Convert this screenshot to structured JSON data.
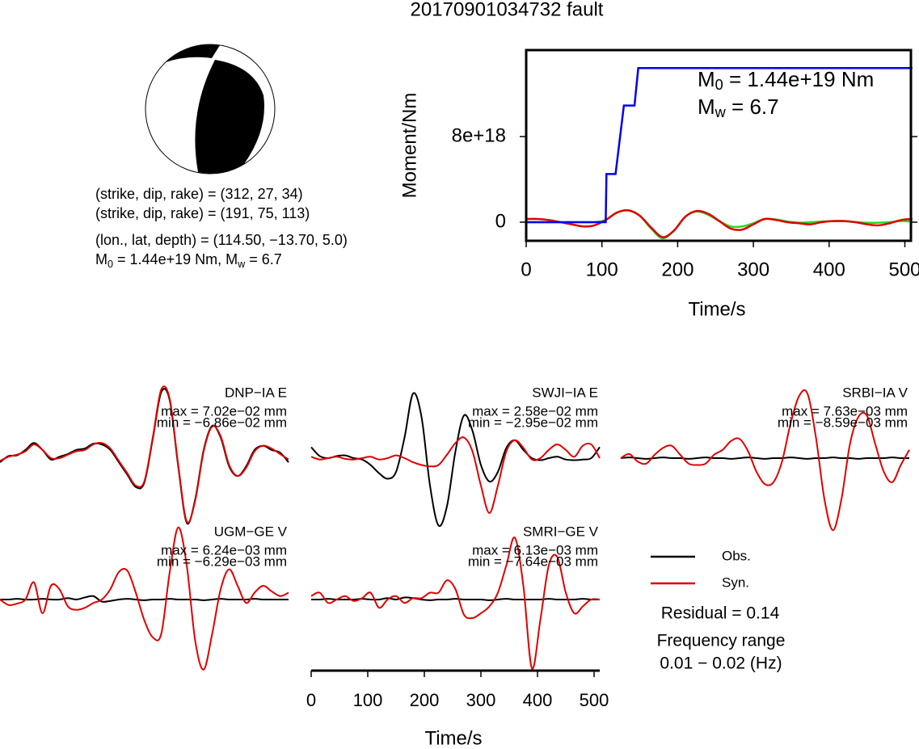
{
  "title": "20170901034732 fault",
  "mechanism": {
    "lines": [
      "(strike, dip, rake) = (312, 27, 34)",
      "(strike, dip, rake) = (191, 75, 113)",
      "(lon., lat, depth) = (114.50, −13.70, 5.0)"
    ],
    "moment_line": [
      "M",
      "0",
      " = 1.44e+19 Nm, M",
      "w",
      " = 6.7"
    ]
  },
  "chart_data": [
    {
      "type": "line",
      "ylabel": "Moment/Nm",
      "xlabel": "Time/s",
      "annotation": [
        "M",
        "0",
        " = 1.44e+19 Nm"
      ],
      "annotation2": [
        "M",
        "w",
        " = 6.7"
      ],
      "xlim": [
        0,
        508
      ],
      "ylim": [
        -1.74e+18,
        1.608e+19
      ],
      "xticks": [
        0,
        100,
        200,
        300,
        400,
        500
      ],
      "yticks": [
        0,
        {
          "value": 8e+18,
          "label": "8e+18"
        }
      ],
      "series": [
        {
          "color": "#22dd22",
          "x": [
            0,
            15,
            30,
            45,
            60,
            75,
            90,
            105,
            120,
            135,
            150,
            165,
            180,
            195,
            210,
            225,
            240,
            255,
            270,
            285,
            300,
            315,
            330,
            345,
            360,
            375,
            390,
            405,
            420,
            435,
            450,
            465,
            480,
            495,
            510
          ],
          "values": [
            0,
            0,
            0,
            0,
            0,
            0,
            0,
            2e+17,
            9e+17,
            1.1e+18,
            6e+17,
            -6e+17,
            -1.5e+18,
            -8e+17,
            5e+17,
            1e+18,
            7e+17,
            1e+17,
            -4e+17,
            -4e+17,
            -1e+17,
            3e+17,
            2.5e+17,
            5e+16,
            -5e+16,
            0,
            5e+16,
            1e+17,
            1e+17,
            0,
            -5e+16,
            -5e+16,
            0,
            1e+17,
            5e+16
          ]
        },
        {
          "color": "#e00000",
          "x": [
            0,
            15,
            30,
            45,
            60,
            75,
            90,
            105,
            120,
            135,
            150,
            165,
            180,
            195,
            210,
            225,
            240,
            255,
            270,
            285,
            300,
            315,
            330,
            345,
            360,
            375,
            390,
            405,
            420,
            435,
            450,
            465,
            480,
            495,
            510
          ],
          "values": [
            3e+17,
            3e+17,
            2e+17,
            0,
            -2e+17,
            -4e+17,
            -3e+17,
            2e+17,
            9e+17,
            1.1e+18,
            6e+17,
            -5e+17,
            -1.4e+18,
            -8e+17,
            5e+17,
            1.05e+18,
            8e+17,
            1e+17,
            -6e+17,
            -7e+17,
            -2e+17,
            3e+17,
            2e+17,
            0,
            -1e+17,
            -2e+17,
            0,
            1e+17,
            1e+17,
            0,
            -2e+17,
            -3e+17,
            -1e+17,
            2e+17,
            3e+17
          ]
        },
        {
          "color": "#0000ee",
          "x": [
            0,
            105,
            106,
            118,
            129,
            143,
            148,
            510
          ],
          "values": [
            0,
            0,
            4.5e+18,
            4.5e+18,
            1.09e+19,
            1.09e+19,
            1.44e+19,
            1.44e+19
          ]
        }
      ]
    },
    {
      "type": "waveform",
      "xlabel": "Time/s",
      "xlim": [
        0,
        510
      ],
      "xticks": [
        0,
        100,
        200,
        300,
        400,
        500
      ],
      "legend": [
        {
          "name": "Obs.",
          "color": "#000000"
        },
        {
          "name": "Syn.",
          "color": "#e00000"
        }
      ],
      "residual": "Residual = 0.14",
      "freq_title": "Frequency range",
      "freq": "0.01 − 0.02 (Hz)",
      "x": [
        0,
        15,
        30,
        45,
        60,
        75,
        90,
        105,
        120,
        135,
        150,
        165,
        180,
        195,
        210,
        225,
        240,
        255,
        270,
        285,
        300,
        315,
        330,
        345,
        360,
        375,
        390,
        405,
        420,
        435,
        450,
        465,
        480,
        495,
        510
      ],
      "panels": [
        {
          "station": "DNP−IA E",
          "max": "max = 7.02e−02 mm",
          "min": "min = −6.86e−02 mm",
          "obs": [
            -0.06,
            0.03,
            0.04,
            0.12,
            0.22,
            0.12,
            -0.02,
            0.02,
            0.06,
            0.12,
            0.14,
            0.21,
            0.2,
            0.12,
            -0.06,
            -0.24,
            -0.42,
            -0.36,
            0.28,
            0.96,
            0.84,
            -0.12,
            -0.94,
            -0.6,
            0.12,
            0.47,
            0.3,
            -0.12,
            -0.26,
            -0.12,
            0.12,
            0.18,
            0.12,
            0.08,
            -0.06
          ],
          "syn": [
            -0.04,
            0.02,
            0.05,
            0.1,
            0.2,
            0.12,
            0.0,
            0.0,
            0.05,
            0.1,
            0.12,
            0.2,
            0.22,
            0.14,
            -0.04,
            -0.22,
            -0.4,
            -0.34,
            0.3,
            1.0,
            0.86,
            -0.1,
            -0.92,
            -0.62,
            0.1,
            0.46,
            0.32,
            -0.1,
            -0.26,
            -0.14,
            0.1,
            0.18,
            0.14,
            0.06,
            -0.02
          ]
        },
        {
          "station": "SWJI−IA E",
          "max": "max = 2.58e−02 mm",
          "min": "min = −2.95e−02 mm",
          "obs": [
            0.16,
            0.03,
            0.0,
            0.03,
            0.04,
            0.0,
            -0.02,
            -0.1,
            -0.22,
            -0.3,
            -0.2,
            0.3,
            0.94,
            0.6,
            -0.4,
            -0.98,
            -0.7,
            0.1,
            0.62,
            0.4,
            -0.1,
            -0.34,
            -0.2,
            0.15,
            0.26,
            0.12,
            0.0,
            -0.03,
            0.0,
            0.02,
            -0.02,
            -0.03,
            -0.02,
            0.0,
            0.16
          ],
          "syn": [
            0.02,
            -0.02,
            0.0,
            0.02,
            -0.01,
            -0.02,
            0.0,
            0.02,
            -0.02,
            0.0,
            0.04,
            0.0,
            -0.06,
            -0.1,
            -0.12,
            -0.1,
            0.05,
            0.22,
            0.3,
            0.1,
            -0.4,
            -0.8,
            -0.4,
            0.1,
            0.26,
            0.15,
            -0.02,
            0.0,
            0.12,
            0.2,
            0.12,
            0.02,
            0.18,
            0.2,
            0.0
          ]
        },
        {
          "station": "SRBI−IA V",
          "max": "max = 7.63e−03 mm",
          "min": "min = −8.59e−03 mm",
          "obs": [
            0.0,
            0.01,
            0.0,
            -0.01,
            0.0,
            0.01,
            0.0,
            0.0,
            -0.01,
            0.0,
            0.01,
            0.0,
            0.0,
            -0.01,
            0.0,
            0.01,
            0.0,
            -0.01,
            0.0,
            0.0,
            0.01,
            0.0,
            -0.01,
            0.0,
            0.0,
            0.01,
            0.0,
            0.0,
            -0.01,
            0.0,
            0.0,
            0.0,
            0.01,
            0.0,
            0.0
          ],
          "syn": [
            0.0,
            0.06,
            -0.05,
            -0.08,
            0.05,
            0.15,
            0.18,
            0.05,
            -0.08,
            -0.1,
            -0.08,
            0.05,
            0.12,
            0.25,
            0.28,
            0.1,
            -0.2,
            -0.38,
            -0.35,
            -0.05,
            0.5,
            0.9,
            0.94,
            0.3,
            -0.6,
            -1.05,
            -0.6,
            0.2,
            0.6,
            0.62,
            0.2,
            -0.2,
            -0.35,
            -0.1,
            0.12
          ]
        },
        {
          "station": "UGM−GE V",
          "max": "max = 6.24e−03 mm",
          "min": "min = −6.29e−03 mm",
          "obs": [
            0.0,
            0.0,
            0.01,
            0.0,
            0.0,
            0.01,
            0.0,
            0.0,
            0.02,
            0.0,
            0.03,
            0.05,
            -0.03,
            -0.02,
            0.0,
            0.01,
            0.0,
            -0.01,
            0.0,
            0.0,
            0.01,
            0.0,
            0.0,
            0.0,
            -0.01,
            0.0,
            0.01,
            0.0,
            0.0,
            0.0,
            0.01,
            0.0,
            0.0,
            0.0,
            0.0
          ],
          "syn": [
            0.0,
            -0.08,
            -0.06,
            0.0,
            0.25,
            -0.2,
            0.2,
            0.15,
            -0.1,
            -0.15,
            -0.12,
            -0.05,
            0.0,
            0.15,
            0.4,
            0.42,
            0.1,
            -0.3,
            -0.55,
            -0.5,
            0.4,
            1.05,
            0.5,
            -0.6,
            -1.02,
            -0.5,
            0.15,
            0.44,
            0.2,
            -0.05,
            0.1,
            0.2,
            0.12,
            0.05,
            0.1
          ]
        },
        {
          "station": "SMRI−GE V",
          "max": "max = 6.13e−03 mm",
          "min": "min = −7.64e−03 mm",
          "obs": [
            0.0,
            0.0,
            0.01,
            0.0,
            0.0,
            0.0,
            0.01,
            0.0,
            0.0,
            0.02,
            0.0,
            0.03,
            0.02,
            0.0,
            -0.01,
            0.0,
            0.0,
            0.01,
            0.0,
            0.0,
            0.0,
            -0.01,
            0.0,
            0.01,
            0.0,
            0.0,
            0.0,
            0.0,
            0.01,
            0.0,
            0.0,
            0.0,
            0.01,
            0.0,
            0.0
          ],
          "syn": [
            0.05,
            0.1,
            -0.05,
            0.0,
            0.05,
            -0.02,
            0.02,
            0.1,
            -0.12,
            0.0,
            0.05,
            -0.05,
            0.02,
            0.02,
            0.1,
            0.1,
            0.28,
            0.15,
            -0.22,
            -0.27,
            -0.2,
            -0.1,
            0.1,
            0.5,
            0.9,
            0.2,
            -1.0,
            -0.3,
            0.5,
            0.62,
            0.1,
            -0.2,
            -0.1,
            0.0,
            0.0
          ]
        }
      ]
    }
  ]
}
